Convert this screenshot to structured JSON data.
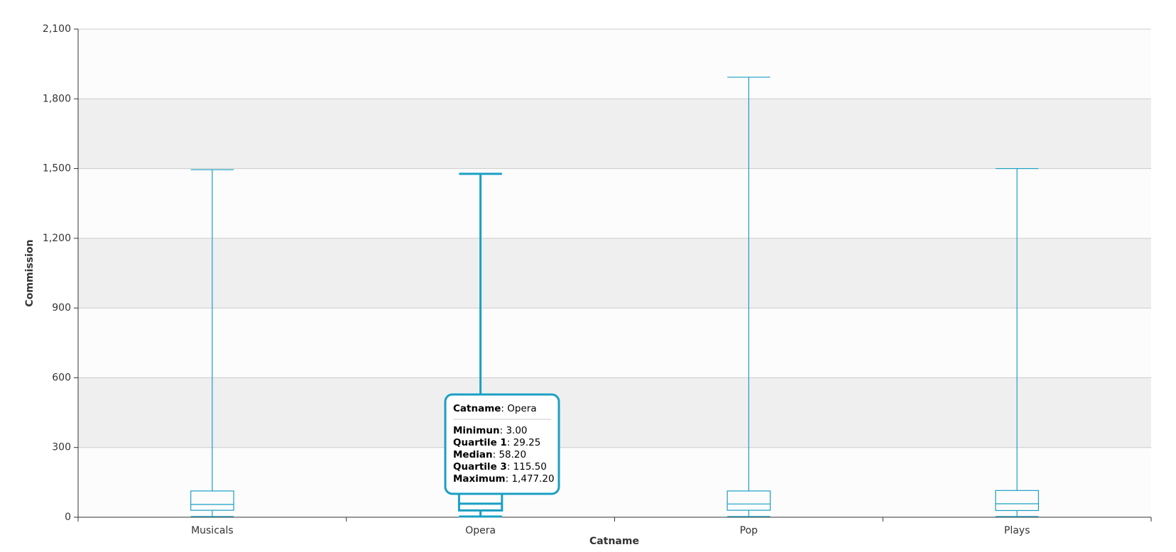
{
  "chart_data": {
    "type": "box",
    "x_label": "Catname",
    "y_label": "Commission",
    "categories": [
      "Musicals",
      "Opera",
      "Pop",
      "Plays"
    ],
    "min": [
      3,
      3,
      3,
      3
    ],
    "q1": [
      30,
      29.25,
      30,
      29
    ],
    "median": [
      55,
      58.2,
      57,
      58
    ],
    "q3": [
      113,
      115.5,
      113,
      115
    ],
    "max": [
      1495,
      1477.2,
      1893,
      1500
    ],
    "color": "#1a9fc4",
    "ylim": [
      0,
      2100
    ],
    "yticks": [
      0,
      300,
      600,
      900,
      {
        "value": 1200,
        "label": "1,200"
      },
      {
        "value": 1500,
        "label": "1,500"
      },
      {
        "value": 1800,
        "label": "1,800"
      },
      {
        "value": 2100,
        "label": "2,100"
      }
    ],
    "grid": true,
    "bands": [
      "#fcfcfc",
      "#efefef"
    ]
  },
  "tooltip": {
    "header_label": "Catname",
    "separator": ": ",
    "header_value": "Opera",
    "rows": [
      {
        "label": "Minimun",
        "value": "3.00"
      },
      {
        "label": "Quartile 1",
        "value": "29.25"
      },
      {
        "label": "Median",
        "value": "58.20"
      },
      {
        "label": "Quartile 3",
        "value": "115.50"
      },
      {
        "label": "Maximum",
        "value": "1,477.20"
      }
    ]
  }
}
